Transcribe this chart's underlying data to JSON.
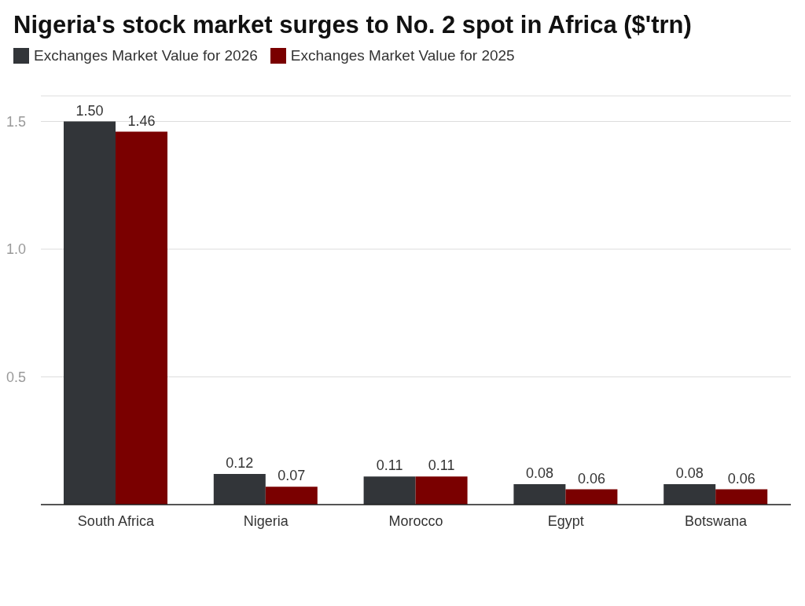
{
  "chart_data": {
    "type": "bar",
    "title": "Nigeria's stock market surges to No. 2 spot in Africa ($'trn)",
    "categories": [
      "South Africa",
      "Nigeria",
      "Morocco",
      "Egypt",
      "Botswana"
    ],
    "series": [
      {
        "name": "Exchanges Market Value for 2026",
        "color": "#323539",
        "values": [
          1.5,
          0.12,
          0.11,
          0.08,
          0.08
        ],
        "value_labels": [
          "1.50",
          "0.12",
          "0.11",
          "0.08",
          "0.08"
        ]
      },
      {
        "name": "Exchanges Market Value for 2025",
        "color": "#7a0000",
        "values": [
          1.46,
          0.07,
          0.11,
          0.06,
          0.06
        ],
        "value_labels": [
          "1.46",
          "0.07",
          "0.11",
          "0.06",
          "0.06"
        ]
      }
    ],
    "ylim": [
      0,
      1.6
    ],
    "yticks": [
      {
        "value": 0,
        "label": null
      },
      {
        "value": 0.5,
        "label": "0.5"
      },
      {
        "value": 1,
        "label": "1.0"
      },
      {
        "value": 1.5,
        "label": "1.5"
      }
    ],
    "grid": "y",
    "legend": "top left"
  }
}
